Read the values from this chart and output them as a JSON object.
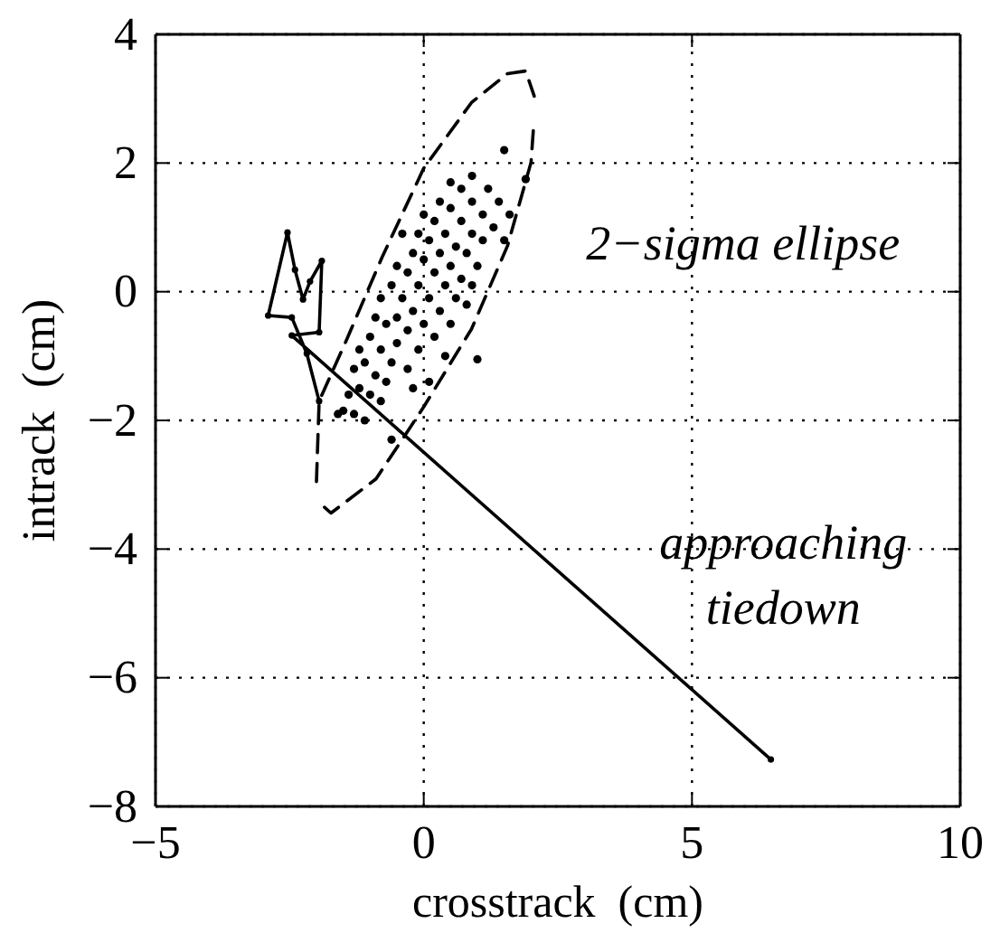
{
  "chart_data": {
    "type": "scatter",
    "xlabel": "crosstrack  (cm)",
    "ylabel": "intrack  (cm)",
    "xlim": [
      -5,
      10
    ],
    "xticks": [
      -5,
      0,
      5,
      10
    ],
    "ylim": [
      -8,
      4
    ],
    "yticks": [
      -8,
      -6,
      -4,
      -2,
      0,
      2,
      4
    ],
    "grid": true,
    "annotations": [
      "2−sigma ellipse",
      "approaching\ntiedown"
    ],
    "series": [
      {
        "color": "#000000",
        "marker": "circle",
        "x": [
          -1.6,
          -1.5,
          -1.3,
          -1.1,
          -1.4,
          -1.2,
          -1.0,
          -0.8,
          -1.3,
          -1.1,
          -0.9,
          -0.7,
          -0.6,
          -1.2,
          -1.0,
          -0.8,
          -0.5,
          -0.3,
          -0.9,
          -0.7,
          -0.5,
          -0.3,
          -0.1,
          -0.8,
          -0.6,
          -0.4,
          -0.2,
          0.0,
          0.2,
          -0.5,
          -0.3,
          -0.1,
          0.1,
          0.3,
          0.5,
          -0.2,
          0.0,
          0.2,
          0.4,
          0.6,
          0.8,
          -0.4,
          -0.1,
          0.1,
          0.3,
          0.5,
          0.7,
          0.9,
          0.0,
          0.2,
          0.4,
          0.6,
          0.8,
          1.0,
          0.3,
          0.5,
          0.7,
          0.9,
          1.1,
          0.5,
          0.7,
          0.9,
          1.1,
          1.3,
          1.5,
          0.9,
          1.2,
          1.4,
          1.6,
          1.5,
          1.9,
          1.0,
          -0.6,
          -0.2,
          0.4,
          0.1
        ],
        "values": [
          -1.9,
          -1.85,
          -1.9,
          -2.0,
          -1.6,
          -1.5,
          -1.6,
          -1.7,
          -1.2,
          -1.1,
          -1.3,
          -1.4,
          -1.1,
          -0.9,
          -0.7,
          -0.9,
          -0.8,
          -1.2,
          -0.4,
          -0.5,
          -0.4,
          -0.6,
          -0.9,
          -0.1,
          0.1,
          -0.1,
          -0.3,
          -0.5,
          -0.7,
          0.4,
          0.3,
          0.1,
          -0.1,
          -0.3,
          -0.5,
          0.6,
          0.5,
          0.3,
          0.1,
          -0.1,
          -0.2,
          0.9,
          0.9,
          0.8,
          0.6,
          0.4,
          0.2,
          0.1,
          1.2,
          1.1,
          0.9,
          0.7,
          0.6,
          0.4,
          1.4,
          1.3,
          1.1,
          0.9,
          0.8,
          1.7,
          1.6,
          1.4,
          1.2,
          1.0,
          0.8,
          1.8,
          1.6,
          1.4,
          1.2,
          2.2,
          1.75,
          -1.05,
          -2.3,
          -1.5,
          -1.0,
          -1.4
        ]
      },
      {
        "type": "line",
        "color": "#000000",
        "line_style": "dashed",
        "marker": "none",
        "x": [
          -2.0,
          -1.95,
          -1.45,
          -0.78,
          0.0,
          0.89,
          1.56,
          1.9,
          2.06
        ],
        "values": [
          -2.95,
          -1.7,
          -0.77,
          0.53,
          1.92,
          2.94,
          3.39,
          3.43,
          3.04
        ]
      },
      {
        "type": "line",
        "color": "#000000",
        "line_style": "dashed",
        "marker": "none",
        "x": [
          -1.85,
          -1.73,
          -0.89,
          0.0,
          0.89,
          1.56,
          2.0,
          2.05
        ],
        "values": [
          -3.35,
          -3.44,
          -2.91,
          -1.79,
          -0.58,
          0.71,
          2.01,
          2.6
        ]
      },
      {
        "type": "line",
        "color": "#000000",
        "line_style": "solid",
        "marker": "circle",
        "x": [
          -1.95,
          -2.18,
          -2.46,
          -2.9,
          -2.54,
          -2.4,
          -2.25,
          -2.12,
          -1.9,
          -1.95,
          -2.46,
          6.47
        ],
        "values": [
          -1.7,
          -0.96,
          -0.4,
          -0.37,
          0.92,
          0.34,
          -0.12,
          0.16,
          0.48,
          -0.63,
          -0.68,
          -7.27
        ]
      }
    ]
  }
}
